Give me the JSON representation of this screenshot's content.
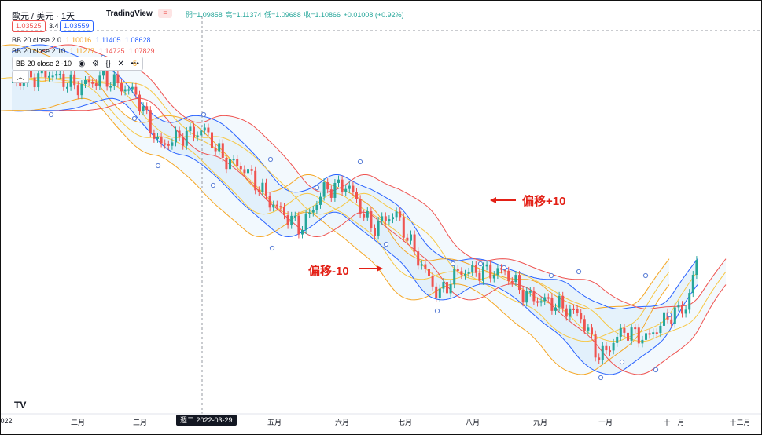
{
  "header": {
    "symbol": "歐元 / 美元 · 1天",
    "source": "TradingView",
    "ohlc": {
      "open": "開=1.09858",
      "high": "高=1.11374",
      "low": "低=1.09688",
      "close": "收=1.10866",
      "change": "+0.01008 (+0.92%)"
    },
    "sell_price": "1.03525",
    "spread": "3.4",
    "buy_price": "1.03559"
  },
  "indicators": [
    {
      "label": "BB 20 close 2 0",
      "values": [
        "1.10016",
        "1.11405",
        "1.08628"
      ],
      "colors": [
        "#f39c12",
        "#2962ff",
        "#2962ff"
      ]
    },
    {
      "label": "BB 20 close 2 10",
      "values": [
        "1.11277",
        "1.14725",
        "1.07829"
      ],
      "colors": [
        "#f5a623",
        "#ef5350",
        "#ef5350"
      ]
    }
  ],
  "indicator_selected": {
    "label": "BB 20 close 2 -10",
    "trail": "5"
  },
  "annotations": {
    "right": "偏移+10",
    "left": "偏移-10"
  },
  "x_axis": {
    "labels": [
      "022",
      "二月",
      "三月",
      "四月",
      "五月",
      "六月",
      "七月",
      "八月",
      "九月",
      "十月",
      "十一月",
      "十二月"
    ],
    "crosshair_label": "週二 2022-03-29"
  },
  "logo_text": "TV",
  "colors": {
    "up": "#26a69a",
    "down": "#ef5350",
    "band_mid": "#2962ff",
    "band_plus": "#ef5350",
    "band_minus": "#f5a623",
    "ma": "#f7c744",
    "annotation": "#e32016"
  }
}
